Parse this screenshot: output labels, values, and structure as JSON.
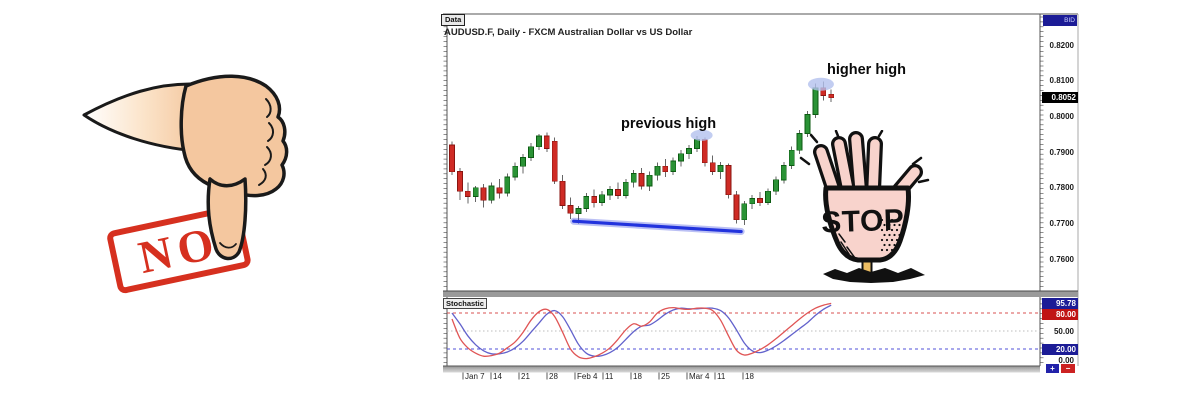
{
  "no_graphic": {
    "stamp_text": "NO"
  },
  "stop_graphic": {
    "label": "STOP"
  },
  "chart": {
    "tab_label": "Data",
    "title": "AUDUSD.F, Daily - FXCM Australian Dollar vs US Dollar",
    "annotations": {
      "previous_high": "previous high",
      "higher_high": "higher high"
    },
    "price_axis": {
      "top_badge": "BID",
      "tick_labels": [
        "0.8200",
        "0.8100",
        "0.8000",
        "0.7900",
        "0.7800",
        "0.7700",
        "0.7600"
      ],
      "last_price_label": "0.8052"
    },
    "stochastic_panel": {
      "label": "Stochastic",
      "current_value_label": "95.78",
      "upper_band_label": "80.00",
      "mid_label": "50.00",
      "lower_band_label": "20.00",
      "zero_label": "0.00"
    },
    "date_axis": [
      "Jan 7",
      "14",
      "21",
      "28",
      "Feb 4",
      "11",
      "18",
      "25",
      "Mar 4",
      "11",
      "18"
    ],
    "controls": {
      "zoom_in": "+",
      "zoom_out": "−"
    }
  },
  "chart_data": {
    "type": "candlestick",
    "symbol": "AUDUSD.F",
    "timeframe": "Daily",
    "description": "FXCM Australian Dollar vs US Dollar",
    "price_ylim": [
      0.751,
      0.8285
    ],
    "price_ticks": [
      0.82,
      0.81,
      0.8,
      0.79,
      0.78,
      0.77,
      0.76
    ],
    "last_price": 0.8052,
    "colors": {
      "up": "#2a9235",
      "up_edge": "#0c5b12",
      "down": "#cf2b25",
      "down_edge": "#8a1410",
      "support_line": "#2233dd",
      "highlight": "#b3c0ee"
    },
    "candles_ohlc": [
      [
        0.792,
        0.793,
        0.7835,
        0.7845
      ],
      [
        0.7845,
        0.7855,
        0.7765,
        0.779
      ],
      [
        0.779,
        0.7815,
        0.7755,
        0.7775
      ],
      [
        0.7775,
        0.7805,
        0.776,
        0.78
      ],
      [
        0.78,
        0.781,
        0.7745,
        0.7765
      ],
      [
        0.7765,
        0.7815,
        0.7755,
        0.7805
      ],
      [
        0.78,
        0.7825,
        0.777,
        0.7785
      ],
      [
        0.7785,
        0.784,
        0.7775,
        0.783
      ],
      [
        0.783,
        0.787,
        0.782,
        0.786
      ],
      [
        0.786,
        0.7895,
        0.784,
        0.7885
      ],
      [
        0.7885,
        0.7925,
        0.7875,
        0.7915
      ],
      [
        0.7915,
        0.795,
        0.7905,
        0.7945
      ],
      [
        0.7945,
        0.7955,
        0.79,
        0.791
      ],
      [
        0.793,
        0.794,
        0.781,
        0.7818
      ],
      [
        0.7818,
        0.7835,
        0.774,
        0.775
      ],
      [
        0.775,
        0.7772,
        0.7712,
        0.7728
      ],
      [
        0.7728,
        0.7748,
        0.77,
        0.7742
      ],
      [
        0.7742,
        0.7785,
        0.7732,
        0.7775
      ],
      [
        0.7775,
        0.7795,
        0.7745,
        0.7758
      ],
      [
        0.7758,
        0.779,
        0.7748,
        0.778
      ],
      [
        0.778,
        0.7805,
        0.7765,
        0.7795
      ],
      [
        0.7795,
        0.7815,
        0.7768,
        0.7778
      ],
      [
        0.7778,
        0.7825,
        0.777,
        0.7815
      ],
      [
        0.7815,
        0.785,
        0.78,
        0.784
      ],
      [
        0.784,
        0.7855,
        0.7795,
        0.7805
      ],
      [
        0.7805,
        0.7845,
        0.779,
        0.7835
      ],
      [
        0.7835,
        0.787,
        0.782,
        0.786
      ],
      [
        0.786,
        0.788,
        0.783,
        0.7845
      ],
      [
        0.7845,
        0.7885,
        0.7835,
        0.7875
      ],
      [
        0.7875,
        0.7905,
        0.786,
        0.7895
      ],
      [
        0.7895,
        0.792,
        0.788,
        0.791
      ],
      [
        0.791,
        0.7945,
        0.79,
        0.7935
      ],
      [
        0.7935,
        0.794,
        0.786,
        0.787
      ],
      [
        0.787,
        0.789,
        0.7835,
        0.7845
      ],
      [
        0.7845,
        0.7872,
        0.7825,
        0.7862
      ],
      [
        0.7862,
        0.7868,
        0.777,
        0.778
      ],
      [
        0.778,
        0.779,
        0.77,
        0.771
      ],
      [
        0.771,
        0.7762,
        0.7695,
        0.7755
      ],
      [
        0.7755,
        0.778,
        0.774,
        0.777
      ],
      [
        0.777,
        0.7788,
        0.7748,
        0.7758
      ],
      [
        0.7758,
        0.7798,
        0.7752,
        0.779
      ],
      [
        0.779,
        0.7832,
        0.778,
        0.7822
      ],
      [
        0.7822,
        0.7872,
        0.7812,
        0.7862
      ],
      [
        0.7862,
        0.7915,
        0.7852,
        0.7905
      ],
      [
        0.7905,
        0.7962,
        0.7895,
        0.7952
      ],
      [
        0.7952,
        0.8015,
        0.7942,
        0.8005
      ],
      [
        0.8005,
        0.8092,
        0.7995,
        0.808
      ],
      [
        0.808,
        0.8098,
        0.8045,
        0.8058
      ],
      [
        0.8062,
        0.8075,
        0.804,
        0.8052
      ]
    ],
    "support_line": {
      "start_index": 15.4,
      "start_price": 0.7706,
      "end_index": 36.6,
      "end_price": 0.7677
    },
    "highlights": [
      {
        "label": "previous high",
        "index": 31.6,
        "price": 0.7947,
        "rx": 11,
        "ry": 5.5
      },
      {
        "label": "higher high",
        "index": 46.7,
        "price": 0.809,
        "rx": 13,
        "ry": 6.5
      }
    ],
    "stochastic": {
      "type": "line",
      "ylim": [
        0,
        100
      ],
      "levels": [
        80,
        50,
        20
      ],
      "current": 95.78,
      "k_color": "#e05555",
      "d_color": "#6262cc",
      "k_values": [
        70,
        38,
        22,
        13,
        8,
        9,
        13,
        22,
        32,
        48,
        68,
        82,
        86,
        74,
        48,
        20,
        7,
        4,
        7,
        13,
        22,
        36,
        52,
        62,
        58,
        65,
        80,
        87,
        89,
        87,
        86,
        88,
        88,
        84,
        68,
        42,
        18,
        10,
        13,
        19,
        27,
        37,
        48,
        59,
        70,
        80,
        88,
        93,
        96
      ],
      "d_values": [
        80,
        62,
        42,
        27,
        17,
        12,
        12,
        15,
        22,
        33,
        48,
        63,
        78,
        84,
        74,
        52,
        28,
        13,
        8,
        9,
        14,
        23,
        36,
        49,
        58,
        60,
        68,
        78,
        85,
        88,
        87,
        87,
        88,
        88,
        84,
        72,
        52,
        30,
        17,
        14,
        18,
        25,
        34,
        44,
        54,
        64,
        76,
        86,
        93
      ]
    }
  }
}
